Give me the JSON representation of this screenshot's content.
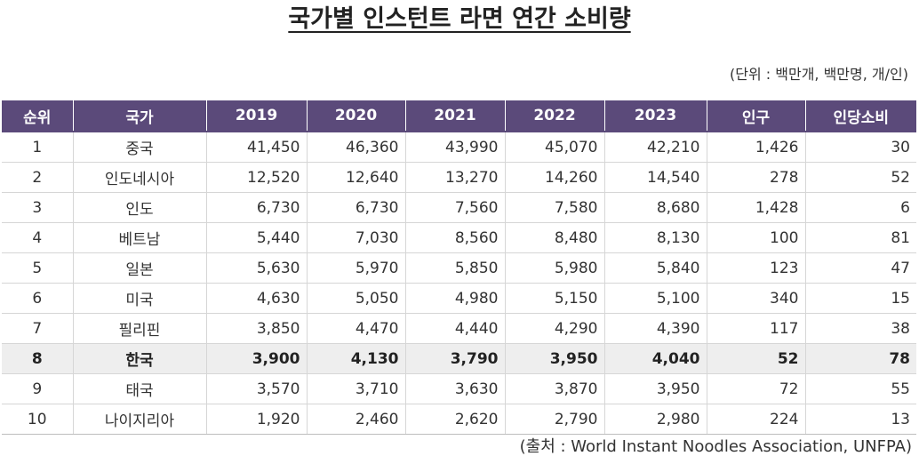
{
  "chart_data": {
    "type": "table",
    "title": "국가별 인스턴트 라면 연간 소비량",
    "unit_note": "(단위 : 백만개, 백만명, 개/인)",
    "source": "(출처 : World Instant Noodles Association, UNFPA)",
    "columns": [
      "순위",
      "국가",
      "2019",
      "2020",
      "2021",
      "2022",
      "2023",
      "인구",
      "인당소비"
    ],
    "highlight_row": 7,
    "header_color": "#5b4a7a",
    "highlight_color": "#eeeeee",
    "rows": [
      [
        "1",
        "중국",
        "41,450",
        "46,360",
        "43,990",
        "45,070",
        "42,210",
        "1,426",
        "30"
      ],
      [
        "2",
        "인도네시아",
        "12,520",
        "12,640",
        "13,270",
        "14,260",
        "14,540",
        "278",
        "52"
      ],
      [
        "3",
        "인도",
        "6,730",
        "6,730",
        "7,560",
        "7,580",
        "8,680",
        "1,428",
        "6"
      ],
      [
        "4",
        "베트남",
        "5,440",
        "7,030",
        "8,560",
        "8,480",
        "8,130",
        "100",
        "81"
      ],
      [
        "5",
        "일본",
        "5,630",
        "5,970",
        "5,850",
        "5,980",
        "5,840",
        "123",
        "47"
      ],
      [
        "6",
        "미국",
        "4,630",
        "5,050",
        "4,980",
        "5,150",
        "5,100",
        "340",
        "15"
      ],
      [
        "7",
        "필리핀",
        "3,850",
        "4,470",
        "4,440",
        "4,290",
        "4,390",
        "117",
        "38"
      ],
      [
        "8",
        "한국",
        "3,900",
        "4,130",
        "3,790",
        "3,950",
        "4,040",
        "52",
        "78"
      ],
      [
        "9",
        "태국",
        "3,570",
        "3,710",
        "3,630",
        "3,870",
        "3,950",
        "72",
        "55"
      ],
      [
        "10",
        "나이지리아",
        "1,920",
        "2,460",
        "2,620",
        "2,790",
        "2,980",
        "224",
        "13"
      ]
    ]
  }
}
